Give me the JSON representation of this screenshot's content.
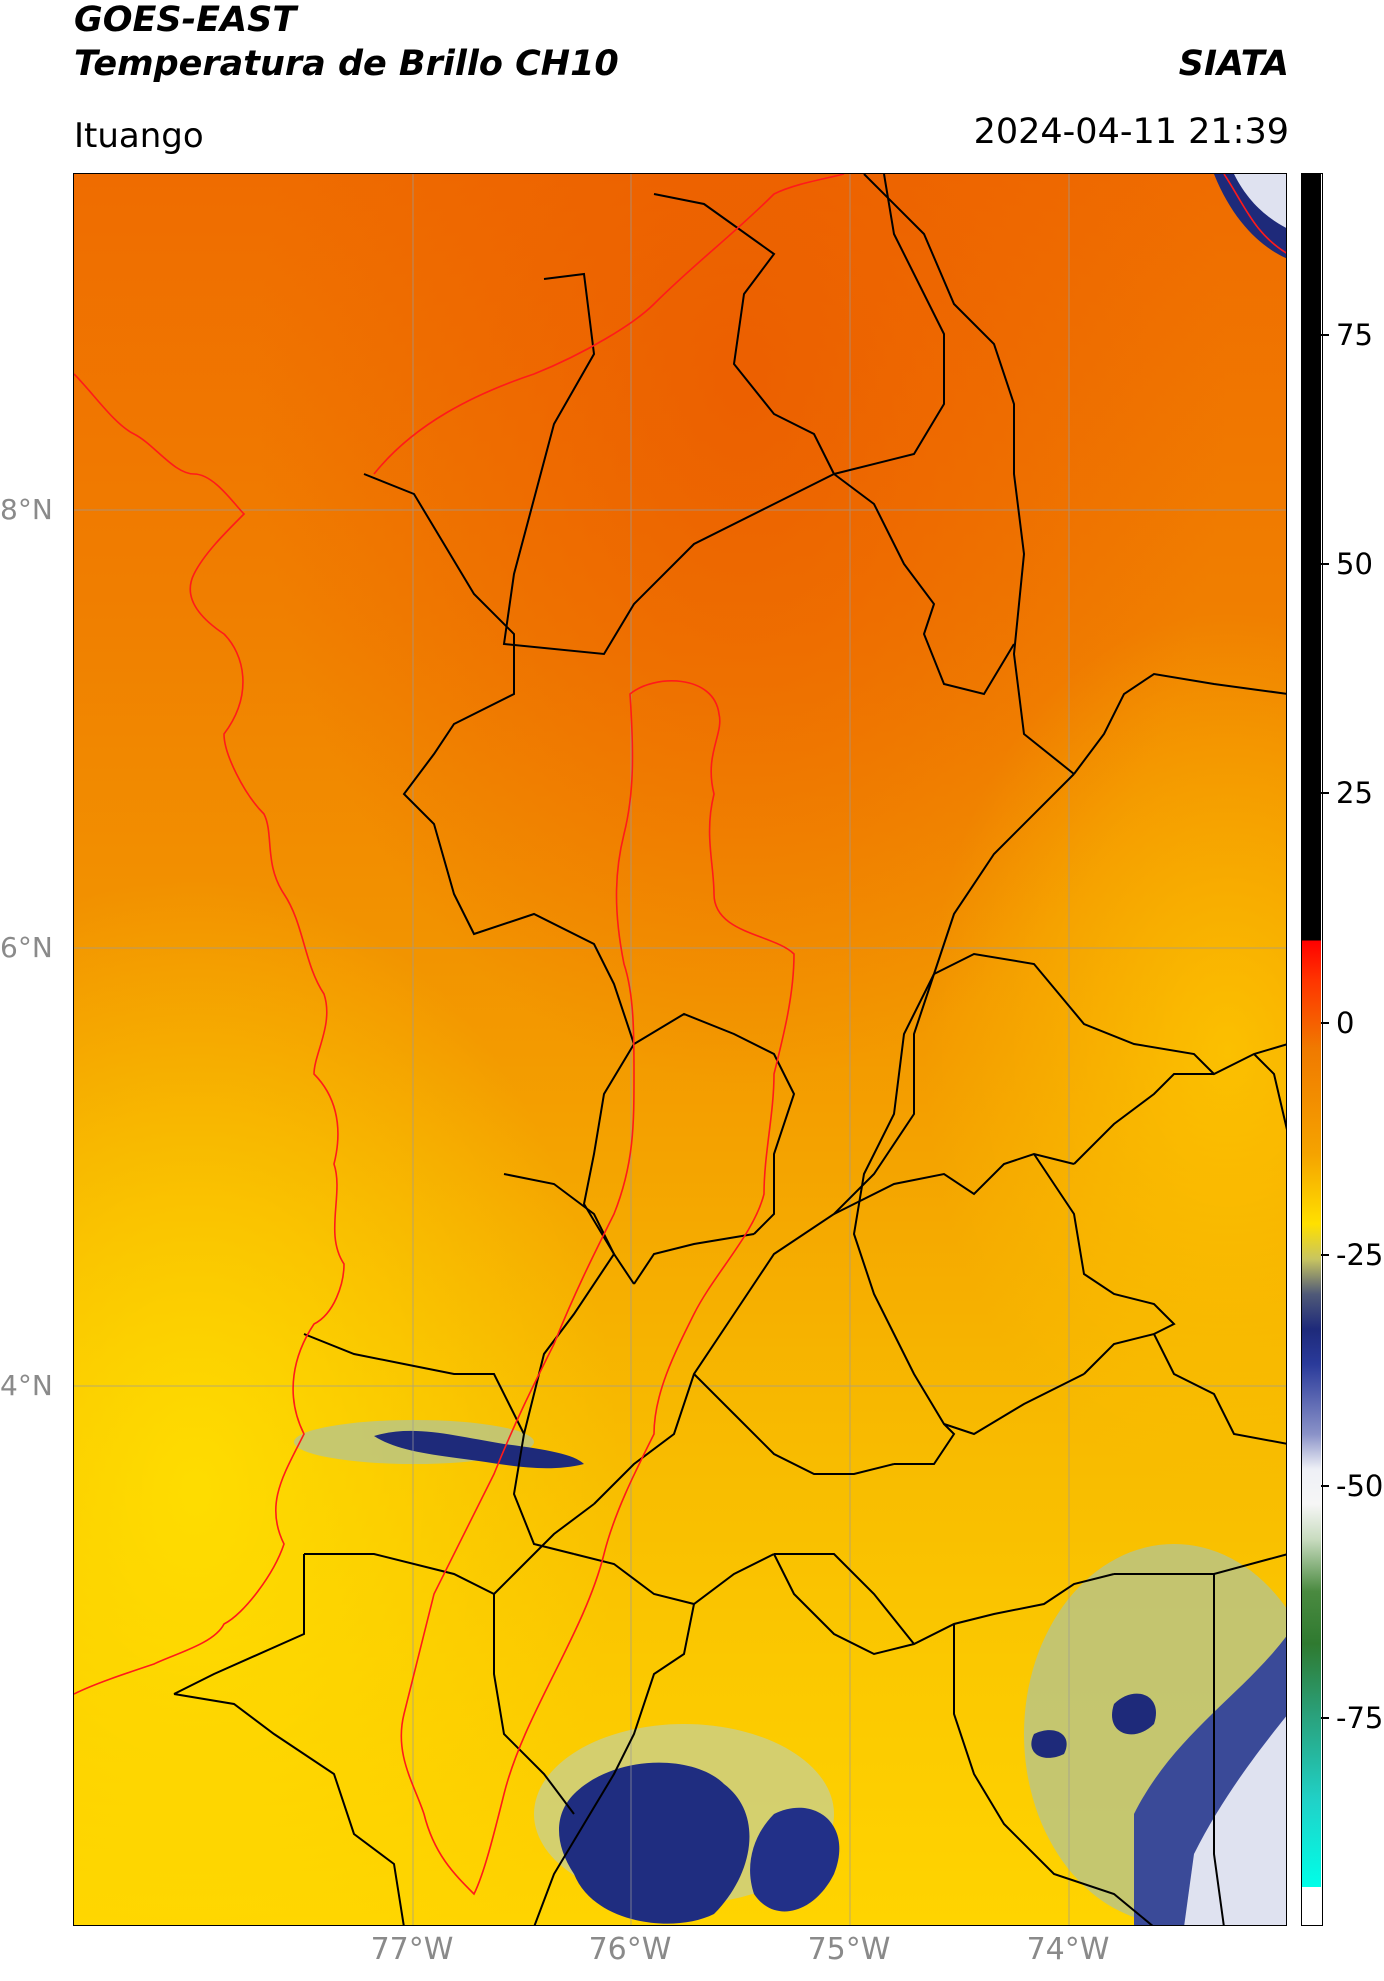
{
  "header": {
    "title_line1": "GOES-EAST",
    "title_line2": "Temperatura de Brillo CH10",
    "organization": "SIATA",
    "region": "Ituango",
    "timestamp": "2024-04-11 21:39"
  },
  "map": {
    "lat_labels": [
      "8°N",
      "6°N",
      "4°N"
    ],
    "lon_labels": [
      "77°W",
      "76°W",
      "75°W",
      "74°W"
    ],
    "colors": {
      "warm": "#f07a00",
      "mid": "#f5a300",
      "cool": "#ffd000",
      "cloud_dark": "#1e2a7a",
      "cloud_light": "#dfe2f0",
      "border_black": "#000000",
      "border_red": "#ff1a1a",
      "grid": "#9a9a9a"
    }
  },
  "colorbar": {
    "ticks": [
      "75",
      "50",
      "25",
      "0",
      "-25",
      "-50",
      "-75"
    ]
  }
}
